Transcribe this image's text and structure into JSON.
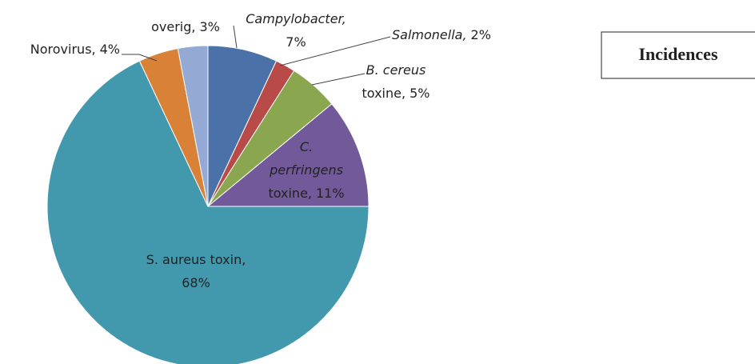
{
  "chart_data": {
    "type": "pie",
    "title": "Incidences",
    "categories": [
      {
        "italic": "Campylobacter,"
      },
      {
        "italic": "Salmonella,"
      },
      {
        "italic": "B. cereus",
        "text": "toxine,"
      },
      {
        "italic": "C. perfringens",
        "text": "toxine,"
      },
      {
        "text": "S. aureus toxin,"
      },
      {
        "text": "Norovirus,"
      },
      {
        "text": "overig,"
      }
    ],
    "values": [
      7,
      2,
      5,
      11,
      68,
      4,
      3
    ],
    "value_labels": [
      "7%",
      "2%",
      "5%",
      "11%",
      "68%",
      "4%",
      "3%"
    ],
    "colors": [
      "#4a72a8",
      "#b84a48",
      "#8aa64e",
      "#72599a",
      "#4298ad",
      "#da8138",
      "#94a9d3"
    ]
  }
}
